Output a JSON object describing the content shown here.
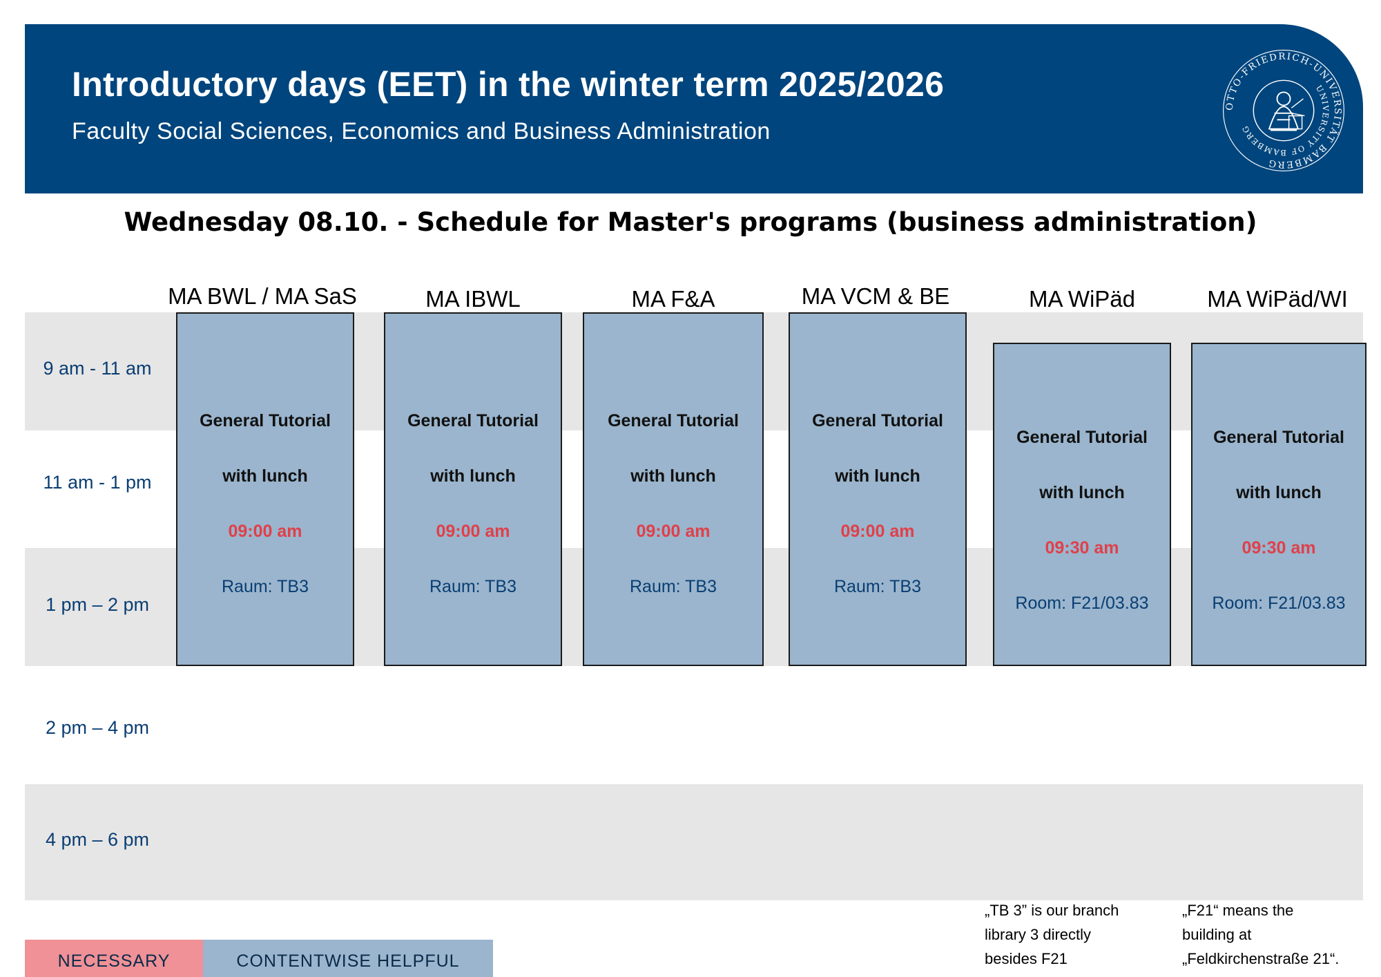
{
  "header": {
    "title": "Introductory days (EET) in the winter term 2025/2026",
    "subtitle": "Faculty Social Sciences, Economics and Business Administration",
    "seal_text": "OTTO-FRIEDRICH-UNIVERSITÄT BAMBERG",
    "seal_text_inner": "UNIVERSITY OF BAMBERG",
    "background_color": "#00457d"
  },
  "schedule": {
    "heading": "Wednesday 08.10. - Schedule for Master's programs (business administration)",
    "time_slots": [
      "9 am - 11 am",
      "11 am - 1 pm",
      "1 pm – 2 pm",
      "2 pm – 4 pm",
      "4 pm – 6 pm"
    ],
    "programs": [
      "MA BWL / MA SaS",
      "MA IBWL",
      "MA F&A",
      "MA VCM & BE",
      "MA WiPäd",
      "MA WiPäd/WI"
    ],
    "events": [
      {
        "title": "General Tutorial",
        "subtitle": "with lunch",
        "time": "09:00 am",
        "room": "Raum: TB3"
      },
      {
        "title": "General Tutorial",
        "subtitle": "with lunch",
        "time": "09:00 am",
        "room": "Raum: TB3"
      },
      {
        "title": "General Tutorial",
        "subtitle": "with lunch",
        "time": "09:00 am",
        "room": "Raum: TB3"
      },
      {
        "title": "General Tutorial",
        "subtitle": "with lunch",
        "time": "09:00 am",
        "room": "Raum: TB3"
      },
      {
        "title": "General Tutorial",
        "subtitle": "with lunch",
        "time": "09:30 am",
        "room": "Room: F21/03.83"
      },
      {
        "title": "General Tutorial",
        "subtitle": "with lunch",
        "time": "09:30 am",
        "room": "Room: F21/03.83"
      }
    ]
  },
  "legend": {
    "necessary": {
      "label": "NECESSARY",
      "color": "#ef9196"
    },
    "helpful": {
      "label": "CONTENTWISE HELPFUL",
      "color": "#9ab5cd"
    }
  },
  "footnotes": {
    "tb3": [
      "„TB 3” is our branch",
      "library 3 directly",
      "besides F21"
    ],
    "f21": [
      "„F21“ means the",
      "building at",
      "„Feldkirchenstraße 21“."
    ]
  }
}
